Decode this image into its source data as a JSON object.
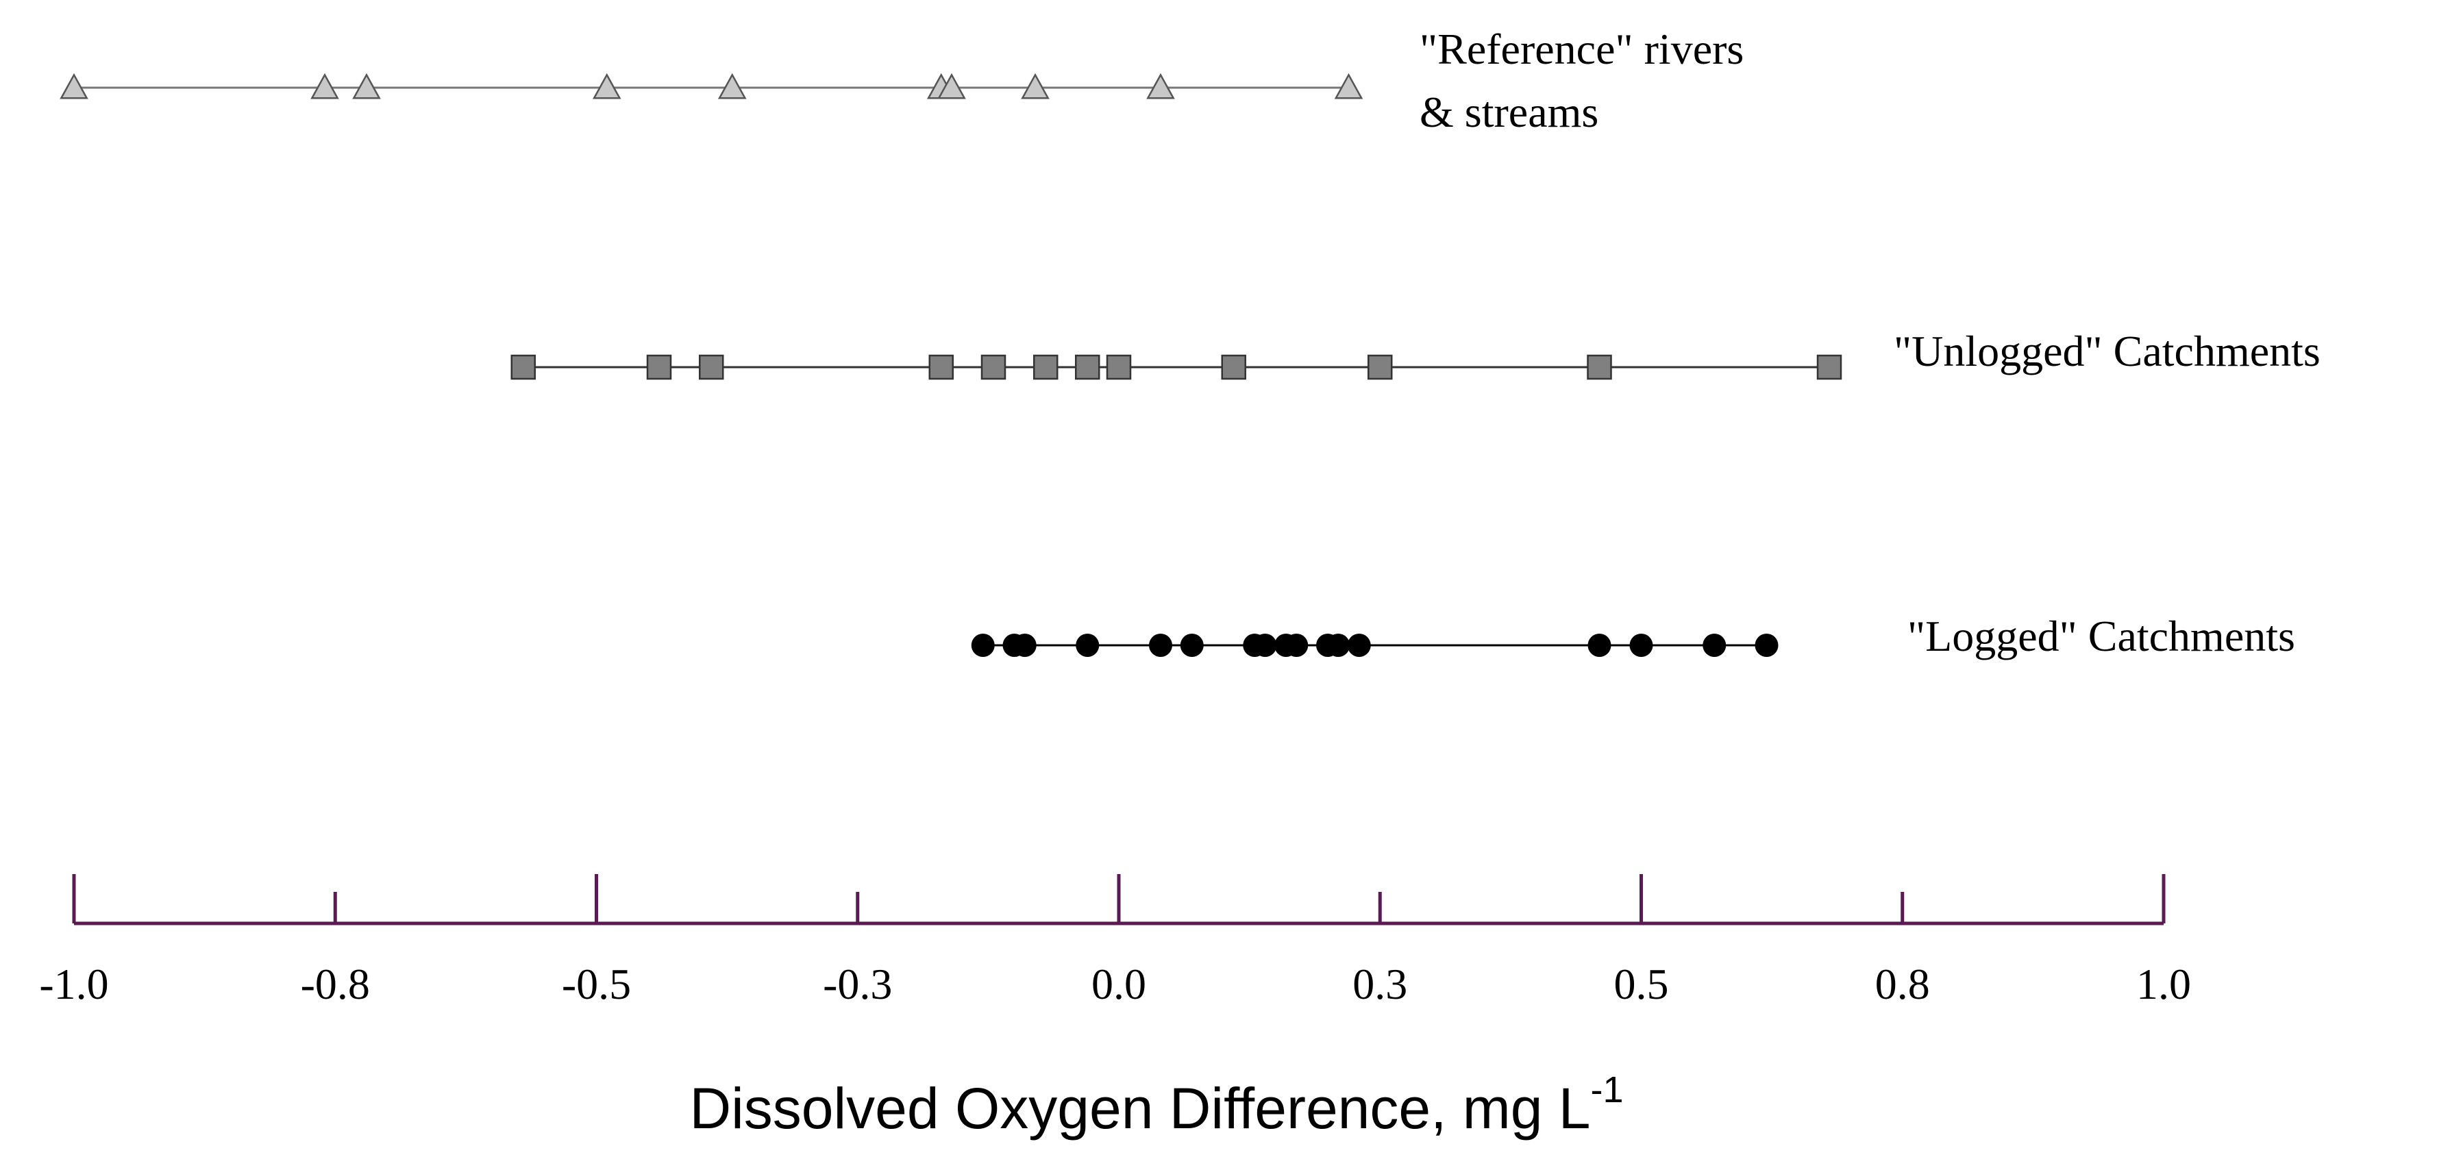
{
  "chart_data": {
    "type": "scatter",
    "title": "",
    "xlabel": "Dissolved Oxygen Difference, mg L",
    "xlabel_superscript": "-1",
    "ylabel": "",
    "xlim": [
      -1.0,
      1.0
    ],
    "x_ticks": [
      -1.0,
      -0.75,
      -0.5,
      -0.25,
      0.0,
      0.25,
      0.5,
      0.75,
      1.0
    ],
    "x_tick_labels": [
      "-1.0",
      "-0.8",
      "-0.5",
      "-0.3",
      "0.0",
      "0.3",
      "0.5",
      "0.8",
      "1.0"
    ],
    "axis_color": "#5a1a52",
    "series": [
      {
        "name": "\"Reference\" rivers & streams",
        "label_lines": [
          "\"Reference\" rivers",
          "& streams"
        ],
        "marker": "triangle",
        "color": "#c8c8c8",
        "line_color": "#777777",
        "values": [
          -1.0,
          -0.76,
          -0.72,
          -0.49,
          -0.37,
          -0.17,
          -0.16,
          -0.08,
          0.04,
          0.22
        ]
      },
      {
        "name": "\"Unlogged\" Catchments",
        "label_lines": [
          "\"Unlogged\" Catchments"
        ],
        "marker": "square",
        "color": "#808080",
        "line_color": "#333333",
        "values": [
          -0.57,
          -0.44,
          -0.39,
          -0.17,
          -0.12,
          -0.07,
          -0.03,
          0.0,
          0.11,
          0.25,
          0.46,
          0.68
        ]
      },
      {
        "name": "\"Logged\" Catchments",
        "label_lines": [
          "\"Logged\" Catchments"
        ],
        "marker": "circle",
        "color": "#000000",
        "line_color": "#000000",
        "values": [
          -0.13,
          -0.1,
          -0.09,
          -0.03,
          0.04,
          0.07,
          0.13,
          0.14,
          0.16,
          0.17,
          0.2,
          0.21,
          0.23,
          0.46,
          0.5,
          0.57,
          0.62
        ]
      }
    ]
  }
}
